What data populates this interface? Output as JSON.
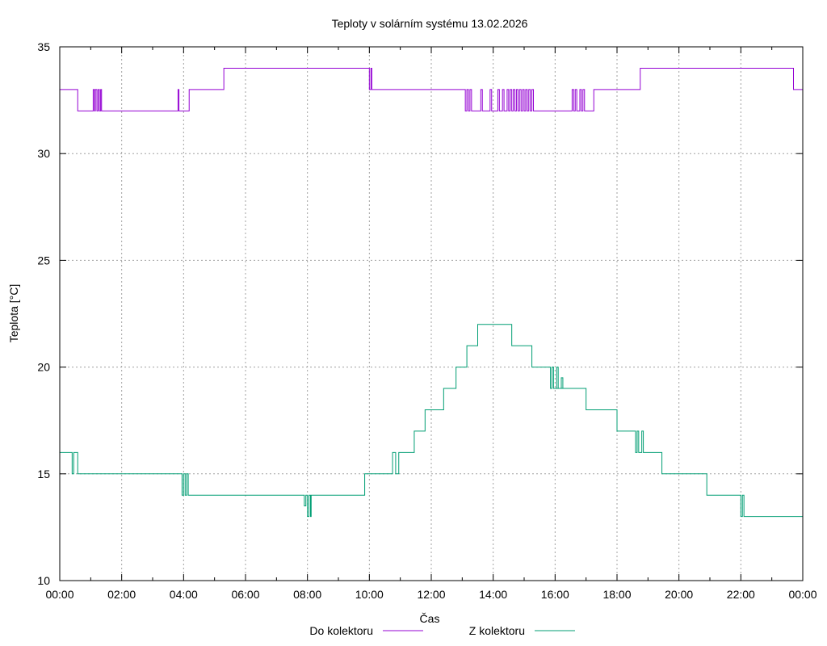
{
  "chart_data": {
    "type": "line",
    "title": "Teploty v solárním systému 13.02.2026",
    "xlabel": "Čas",
    "ylabel": "Teplota [°C]",
    "xlim": [
      0,
      24
    ],
    "ylim": [
      10,
      35
    ],
    "grid": true,
    "x_ticks": [
      0,
      2,
      4,
      6,
      8,
      10,
      12,
      14,
      16,
      18,
      20,
      22,
      24
    ],
    "x_tick_labels": [
      "00:00",
      "02:00",
      "04:00",
      "06:00",
      "08:00",
      "10:00",
      "12:00",
      "14:00",
      "16:00",
      "18:00",
      "20:00",
      "22:00",
      "00:00"
    ],
    "y_ticks": [
      10,
      15,
      20,
      25,
      30,
      35
    ],
    "y_tick_labels": [
      "10",
      "15",
      "20",
      "25",
      "30",
      "35"
    ],
    "legend_position": "bottom",
    "series": [
      {
        "name": "Do kolektoru",
        "color": "#9400d3",
        "points": [
          [
            0.0,
            33
          ],
          [
            0.58,
            33
          ],
          [
            0.58,
            32
          ],
          [
            1.08,
            32
          ],
          [
            1.08,
            33
          ],
          [
            1.12,
            33
          ],
          [
            1.12,
            32
          ],
          [
            1.15,
            32
          ],
          [
            1.15,
            33
          ],
          [
            1.2,
            33
          ],
          [
            1.2,
            32
          ],
          [
            1.24,
            32
          ],
          [
            1.24,
            33
          ],
          [
            1.28,
            33
          ],
          [
            1.28,
            32
          ],
          [
            1.32,
            32
          ],
          [
            1.32,
            33
          ],
          [
            1.35,
            33
          ],
          [
            1.35,
            32
          ],
          [
            3.82,
            32
          ],
          [
            3.82,
            33
          ],
          [
            3.85,
            33
          ],
          [
            3.85,
            32
          ],
          [
            4.18,
            32
          ],
          [
            4.18,
            33
          ],
          [
            5.3,
            33
          ],
          [
            5.3,
            34
          ],
          [
            10.0,
            34
          ],
          [
            10.0,
            33
          ],
          [
            10.05,
            33
          ],
          [
            10.05,
            34
          ],
          [
            10.08,
            34
          ],
          [
            10.08,
            33
          ],
          [
            13.1,
            33
          ],
          [
            13.1,
            32
          ],
          [
            13.15,
            32
          ],
          [
            13.15,
            33
          ],
          [
            13.2,
            33
          ],
          [
            13.2,
            32
          ],
          [
            13.25,
            32
          ],
          [
            13.25,
            33
          ],
          [
            13.3,
            33
          ],
          [
            13.3,
            32
          ],
          [
            13.6,
            32
          ],
          [
            13.6,
            33
          ],
          [
            13.65,
            33
          ],
          [
            13.65,
            32
          ],
          [
            13.9,
            32
          ],
          [
            13.9,
            33
          ],
          [
            13.95,
            33
          ],
          [
            13.95,
            32
          ],
          [
            14.15,
            32
          ],
          [
            14.15,
            33
          ],
          [
            14.2,
            33
          ],
          [
            14.2,
            32
          ],
          [
            14.3,
            32
          ],
          [
            14.3,
            33
          ],
          [
            14.35,
            33
          ],
          [
            14.35,
            32
          ],
          [
            14.45,
            32
          ],
          [
            14.45,
            33
          ],
          [
            14.5,
            33
          ],
          [
            14.5,
            32
          ],
          [
            14.55,
            32
          ],
          [
            14.55,
            33
          ],
          [
            14.6,
            33
          ],
          [
            14.6,
            32
          ],
          [
            14.65,
            32
          ],
          [
            14.65,
            33
          ],
          [
            14.7,
            33
          ],
          [
            14.7,
            32
          ],
          [
            14.75,
            32
          ],
          [
            14.75,
            33
          ],
          [
            14.8,
            33
          ],
          [
            14.8,
            32
          ],
          [
            14.85,
            32
          ],
          [
            14.85,
            33
          ],
          [
            14.9,
            33
          ],
          [
            14.9,
            32
          ],
          [
            14.95,
            32
          ],
          [
            14.95,
            33
          ],
          [
            15.0,
            33
          ],
          [
            15.0,
            32
          ],
          [
            15.05,
            32
          ],
          [
            15.05,
            33
          ],
          [
            15.1,
            33
          ],
          [
            15.1,
            32
          ],
          [
            15.15,
            32
          ],
          [
            15.15,
            33
          ],
          [
            15.2,
            33
          ],
          [
            15.2,
            32
          ],
          [
            15.25,
            32
          ],
          [
            15.25,
            33
          ],
          [
            15.3,
            33
          ],
          [
            15.3,
            32
          ],
          [
            16.55,
            32
          ],
          [
            16.55,
            33
          ],
          [
            16.6,
            33
          ],
          [
            16.6,
            32
          ],
          [
            16.65,
            32
          ],
          [
            16.65,
            33
          ],
          [
            16.7,
            33
          ],
          [
            16.7,
            32
          ],
          [
            16.8,
            32
          ],
          [
            16.8,
            33
          ],
          [
            16.85,
            33
          ],
          [
            16.85,
            32
          ],
          [
            16.9,
            32
          ],
          [
            16.9,
            33
          ],
          [
            16.95,
            33
          ],
          [
            16.95,
            32
          ],
          [
            17.25,
            32
          ],
          [
            17.25,
            33
          ],
          [
            18.75,
            33
          ],
          [
            18.75,
            34
          ],
          [
            23.7,
            34
          ],
          [
            23.7,
            33
          ],
          [
            24.0,
            33
          ]
        ]
      },
      {
        "name": "Z kolektoru",
        "color": "#009e73",
        "points": [
          [
            0.0,
            16
          ],
          [
            0.4,
            16
          ],
          [
            0.4,
            15
          ],
          [
            0.45,
            15
          ],
          [
            0.45,
            16
          ],
          [
            0.58,
            16
          ],
          [
            0.58,
            15
          ],
          [
            3.95,
            15
          ],
          [
            3.95,
            14
          ],
          [
            4.0,
            14
          ],
          [
            4.0,
            15
          ],
          [
            4.05,
            15
          ],
          [
            4.05,
            14
          ],
          [
            4.1,
            14
          ],
          [
            4.1,
            15
          ],
          [
            4.15,
            15
          ],
          [
            4.15,
            14
          ],
          [
            7.9,
            14
          ],
          [
            7.9,
            13.5
          ],
          [
            7.95,
            13.5
          ],
          [
            7.95,
            14
          ],
          [
            8.0,
            14
          ],
          [
            8.0,
            13
          ],
          [
            8.05,
            13
          ],
          [
            8.05,
            14
          ],
          [
            8.1,
            14
          ],
          [
            8.1,
            13
          ],
          [
            8.12,
            13
          ],
          [
            8.12,
            14
          ],
          [
            9.85,
            14
          ],
          [
            9.85,
            15
          ],
          [
            10.75,
            15
          ],
          [
            10.75,
            16
          ],
          [
            10.85,
            16
          ],
          [
            10.85,
            15
          ],
          [
            10.95,
            15
          ],
          [
            10.95,
            16
          ],
          [
            11.45,
            16
          ],
          [
            11.45,
            17
          ],
          [
            11.8,
            17
          ],
          [
            11.8,
            18
          ],
          [
            12.4,
            18
          ],
          [
            12.4,
            19
          ],
          [
            12.8,
            19
          ],
          [
            12.8,
            20
          ],
          [
            13.15,
            20
          ],
          [
            13.15,
            21
          ],
          [
            13.5,
            21
          ],
          [
            13.5,
            22
          ],
          [
            14.6,
            22
          ],
          [
            14.6,
            21
          ],
          [
            15.25,
            21
          ],
          [
            15.25,
            20
          ],
          [
            15.85,
            20
          ],
          [
            15.85,
            19
          ],
          [
            15.9,
            19
          ],
          [
            15.9,
            20
          ],
          [
            15.95,
            20
          ],
          [
            15.95,
            19
          ],
          [
            16.05,
            19
          ],
          [
            16.05,
            20
          ],
          [
            16.1,
            20
          ],
          [
            16.1,
            19
          ],
          [
            16.2,
            19
          ],
          [
            16.2,
            19.5
          ],
          [
            16.25,
            19.5
          ],
          [
            16.25,
            19
          ],
          [
            16.0,
            19
          ],
          [
            16.0,
            19
          ],
          [
            17.0,
            19
          ],
          [
            17.0,
            18
          ],
          [
            18.0,
            18
          ],
          [
            18.0,
            17
          ],
          [
            18.6,
            17
          ],
          [
            18.6,
            16
          ],
          [
            18.65,
            16
          ],
          [
            18.65,
            17
          ],
          [
            18.7,
            17
          ],
          [
            18.7,
            16
          ],
          [
            18.8,
            16
          ],
          [
            18.8,
            17
          ],
          [
            18.85,
            17
          ],
          [
            18.85,
            16
          ],
          [
            19.45,
            16
          ],
          [
            19.45,
            15
          ],
          [
            20.9,
            15
          ],
          [
            20.9,
            14
          ],
          [
            22.0,
            14
          ],
          [
            22.0,
            13
          ],
          [
            22.05,
            13
          ],
          [
            22.05,
            14
          ],
          [
            22.1,
            14
          ],
          [
            22.1,
            13
          ],
          [
            24.0,
            13
          ]
        ]
      }
    ]
  }
}
